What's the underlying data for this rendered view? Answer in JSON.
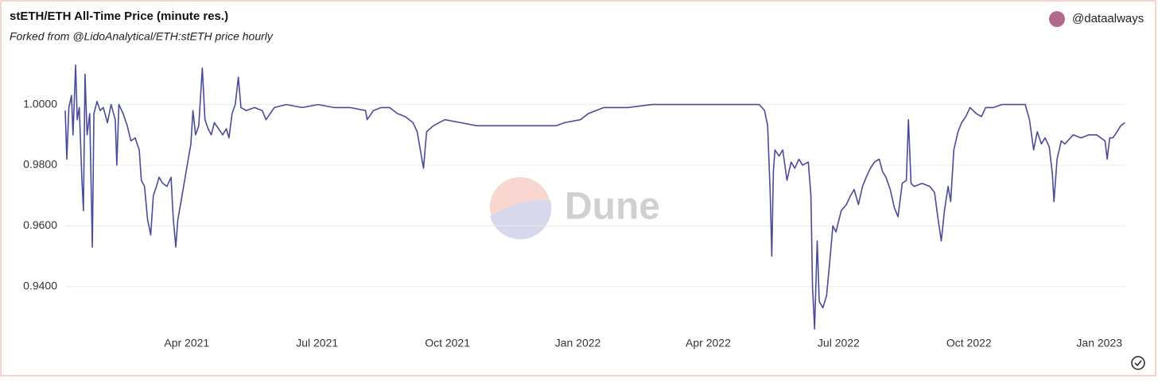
{
  "chart_data": {
    "type": "line",
    "title": "stETH/ETH All-Time Price (minute res.)",
    "subtitle": "Forked from @LidoAnalytical/ETH:stETH price hourly",
    "author": "@dataalways",
    "watermark": "Dune",
    "grid": true,
    "xlim": [
      2021.017,
      2023.05
    ],
    "ylim": [
      0.925,
      1.0135
    ],
    "xticks": [
      {
        "value": 2021.25,
        "label": "Apr 2021"
      },
      {
        "value": 2021.5,
        "label": "Jul 2021"
      },
      {
        "value": 2021.75,
        "label": "Oct 2021"
      },
      {
        "value": 2022.0,
        "label": "Jan 2022"
      },
      {
        "value": 2022.25,
        "label": "Apr 2022"
      },
      {
        "value": 2022.5,
        "label": "Jul 2022"
      },
      {
        "value": 2022.75,
        "label": "Oct 2022"
      },
      {
        "value": 2023.0,
        "label": "Jan 2023"
      }
    ],
    "yticks": [
      {
        "value": 0.94,
        "label": "0.9400"
      },
      {
        "value": 0.96,
        "label": "0.9600"
      },
      {
        "value": 0.98,
        "label": "0.9800"
      },
      {
        "value": 1.0,
        "label": "1.0000"
      }
    ],
    "x": [
      2021.017,
      2021.02,
      2021.024,
      2021.029,
      2021.032,
      2021.037,
      2021.04,
      2021.044,
      2021.049,
      2021.052,
      2021.055,
      2021.059,
      2021.064,
      2021.069,
      2021.072,
      2021.078,
      2021.084,
      2021.09,
      2021.098,
      2021.105,
      2021.113,
      2021.116,
      2021.12,
      2021.128,
      2021.136,
      2021.143,
      2021.151,
      2021.159,
      2021.163,
      2021.169,
      2021.175,
      2021.181,
      2021.186,
      2021.192,
      2021.197,
      2021.204,
      2021.212,
      2021.22,
      2021.224,
      2021.229,
      2021.233,
      2021.239,
      2021.247,
      2021.253,
      2021.258,
      2021.262,
      2021.267,
      2021.273,
      2021.28,
      2021.285,
      2021.291,
      2021.297,
      2021.303,
      2021.311,
      2021.319,
      2021.326,
      2021.331,
      2021.337,
      2021.343,
      2021.349,
      2021.354,
      2021.364,
      2021.38,
      2021.395,
      2021.402,
      2021.418,
      2021.441,
      2021.471,
      2021.502,
      2021.532,
      2021.563,
      2021.593,
      2021.596,
      2021.608,
      2021.623,
      2021.639,
      2021.654,
      2021.669,
      2021.684,
      2021.692,
      2021.7,
      2021.704,
      2021.71,
      2021.723,
      2021.745,
      2021.776,
      2021.806,
      2021.852,
      2021.898,
      2021.944,
      2021.959,
      2021.974,
      2022.005,
      2022.02,
      2022.05,
      2022.096,
      2022.142,
      2022.203,
      2022.264,
      2022.31,
      2022.348,
      2022.358,
      2022.364,
      2022.369,
      2022.372,
      2022.375,
      2022.378,
      2022.386,
      2022.393,
      2022.401,
      2022.409,
      2022.416,
      2022.424,
      2022.431,
      2022.442,
      2022.447,
      2022.45,
      2022.454,
      2022.459,
      2022.463,
      2022.47,
      2022.477,
      2022.483,
      2022.489,
      2022.495,
      2022.505,
      2022.515,
      2022.523,
      2022.53,
      2022.538,
      2022.546,
      2022.553,
      2022.561,
      2022.569,
      2022.578,
      2022.584,
      2022.591,
      2022.599,
      2022.607,
      2022.614,
      2022.622,
      2022.63,
      2022.634,
      2022.639,
      2022.645,
      2022.66,
      2022.675,
      2022.684,
      2022.691,
      2022.697,
      2022.703,
      2022.71,
      2022.715,
      2022.721,
      2022.729,
      2022.736,
      2022.744,
      2022.752,
      2022.764,
      2022.774,
      2022.782,
      2022.797,
      2022.813,
      2022.835,
      2022.858,
      2022.866,
      2022.874,
      2022.881,
      2022.889,
      2022.896,
      2022.904,
      2022.91,
      2022.913,
      2022.919,
      2022.927,
      2022.934,
      2022.95,
      2022.965,
      2022.98,
      2022.995,
      2023.011,
      2023.015,
      2023.02,
      2023.026,
      2023.034,
      2023.041,
      2023.049
    ],
    "series": [
      {
        "name": "price",
        "color": "#4b4b9b",
        "values": [
          0.998,
          0.982,
          0.999,
          1.003,
          0.99,
          1.013,
          0.995,
          0.999,
          0.975,
          0.965,
          1.01,
          0.99,
          0.997,
          0.953,
          0.997,
          1.001,
          0.998,
          0.999,
          0.994,
          1.0,
          0.995,
          0.98,
          1.0,
          0.997,
          0.993,
          0.988,
          0.989,
          0.985,
          0.975,
          0.973,
          0.962,
          0.957,
          0.97,
          0.973,
          0.976,
          0.974,
          0.973,
          0.976,
          0.963,
          0.953,
          0.962,
          0.968,
          0.976,
          0.982,
          0.987,
          0.998,
          0.99,
          0.993,
          1.012,
          0.995,
          0.992,
          0.99,
          0.994,
          0.992,
          0.99,
          0.992,
          0.989,
          0.997,
          1.0,
          1.009,
          0.999,
          0.998,
          0.999,
          0.998,
          0.995,
          0.999,
          1.0,
          0.999,
          1.0,
          0.999,
          0.999,
          0.998,
          0.995,
          0.998,
          0.999,
          0.999,
          0.997,
          0.996,
          0.994,
          0.991,
          0.983,
          0.979,
          0.991,
          0.993,
          0.995,
          0.994,
          0.993,
          0.993,
          0.993,
          0.993,
          0.993,
          0.994,
          0.995,
          0.997,
          0.999,
          0.999,
          1.0,
          1.0,
          1.0,
          1.0,
          1.0,
          0.998,
          0.993,
          0.97,
          0.95,
          0.978,
          0.985,
          0.983,
          0.985,
          0.975,
          0.981,
          0.979,
          0.982,
          0.98,
          0.981,
          0.97,
          0.94,
          0.926,
          0.955,
          0.935,
          0.933,
          0.937,
          0.948,
          0.96,
          0.958,
          0.965,
          0.967,
          0.97,
          0.972,
          0.967,
          0.973,
          0.976,
          0.979,
          0.981,
          0.982,
          0.978,
          0.976,
          0.972,
          0.966,
          0.963,
          0.974,
          0.975,
          0.995,
          0.974,
          0.973,
          0.974,
          0.973,
          0.971,
          0.962,
          0.955,
          0.965,
          0.973,
          0.968,
          0.985,
          0.991,
          0.994,
          0.996,
          0.999,
          0.997,
          0.996,
          0.999,
          0.999,
          1.0,
          1.0,
          1.0,
          0.995,
          0.985,
          0.991,
          0.987,
          0.989,
          0.986,
          0.977,
          0.968,
          0.982,
          0.988,
          0.987,
          0.99,
          0.989,
          0.99,
          0.99,
          0.988,
          0.982,
          0.989,
          0.989,
          0.991,
          0.993,
          0.994
        ]
      }
    ]
  }
}
